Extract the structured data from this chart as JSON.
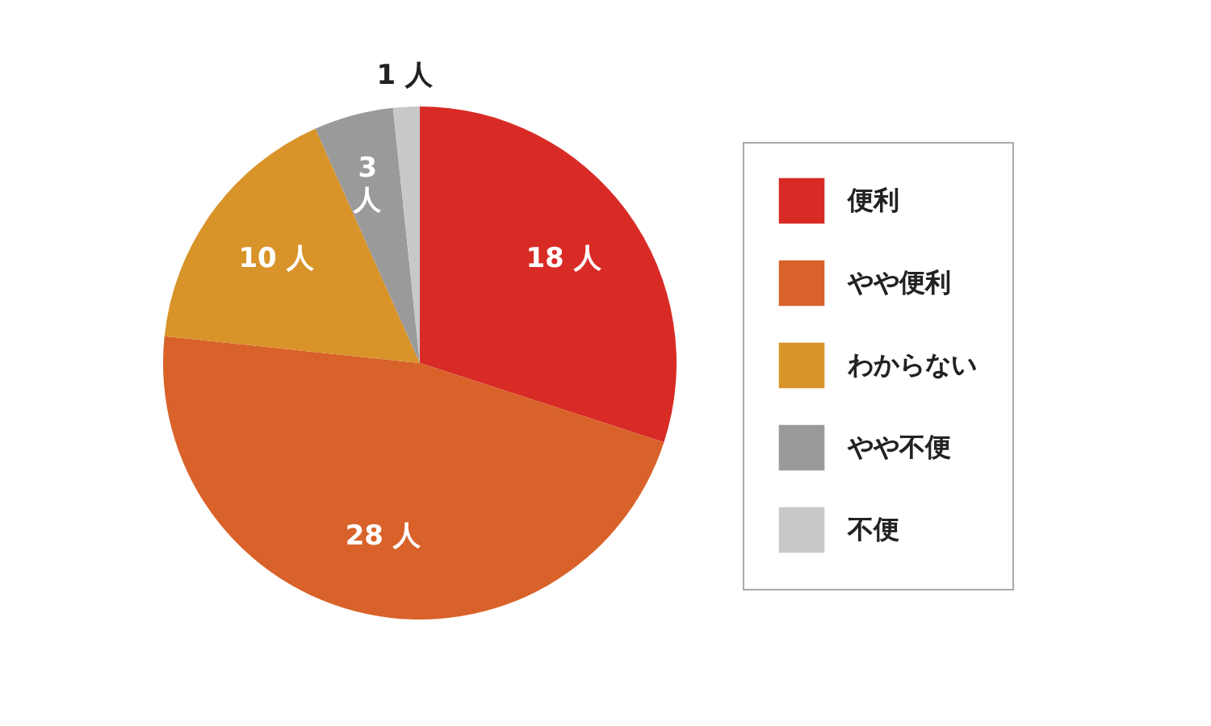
{
  "chart_data": {
    "type": "pie",
    "categories": [
      "便利",
      "やや便利",
      "わからない",
      "やや不便",
      "不便"
    ],
    "values": [
      18,
      28,
      10,
      3,
      1
    ],
    "colors": [
      "#d92b26",
      "#d9622a",
      "#d89329",
      "#9a9a9a",
      "#c8c8c8"
    ],
    "value_labels": [
      "18 人",
      "28 人",
      "10 人",
      "3 人",
      "1 人"
    ],
    "legend": "right"
  }
}
